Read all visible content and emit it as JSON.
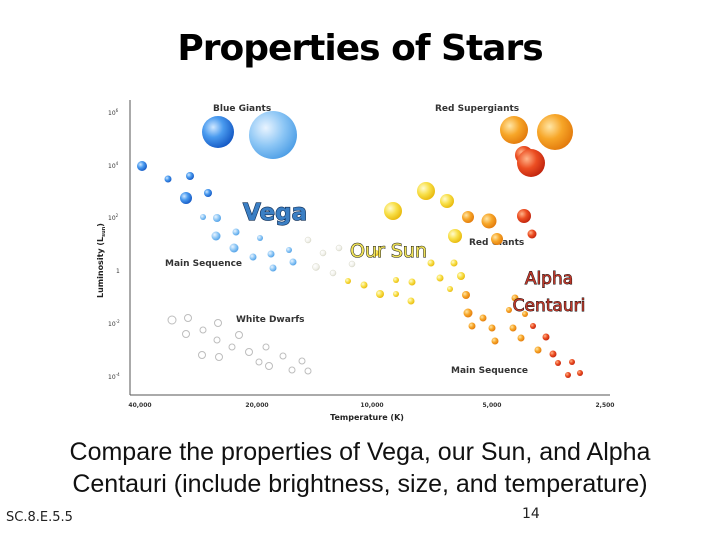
{
  "slide": {
    "title": "Properties of Stars",
    "caption_line1": "Compare the properties of Vega, our Sun, and Alpha",
    "caption_line2": "Centauri (include brightness, size, and temperature)",
    "standard_code": "SC.8.E.5.5",
    "page_number": "14"
  },
  "diagram": {
    "y_axis_label": "Luminosity (L",
    "y_axis_label_sub": "sun",
    "y_axis_label_close": ")",
    "y_ticks": [
      {
        "base": "10",
        "exp": "6"
      },
      {
        "base": "10",
        "exp": "4"
      },
      {
        "base": "10",
        "exp": "2"
      },
      {
        "base": "1",
        "exp": ""
      },
      {
        "base": "10",
        "exp": "-2"
      },
      {
        "base": "10",
        "exp": "-4"
      }
    ],
    "x_axis_label": "Temperature (K)",
    "x_ticks": [
      "40,000",
      "20,000",
      "10,000",
      "5,000",
      "2,500"
    ],
    "region_labels": {
      "blue_giants": "Blue Giants",
      "red_supergiants": "Red Supergiants",
      "red_giants": "Red Giants",
      "main_sequence_left": "Main Sequence",
      "white_dwarfs": "White Dwarfs",
      "main_sequence_right": "Main Sequence"
    },
    "callouts": {
      "vega": "Vega",
      "our_sun": "Our Sun",
      "alpha_line1": "Alpha",
      "alpha_line2": "Centauri"
    },
    "colors": {
      "blue": "#1f6fd6",
      "light_blue": "#6fb4f0",
      "yellow": "#f5d21a",
      "orange": "#f29a1c",
      "red": "#e2381c",
      "dwarf_outline": "#bdbdbd",
      "callout_blue": "#3b7fc4",
      "callout_yellow": "#f0e35a",
      "callout_red": "#c0392b"
    }
  }
}
